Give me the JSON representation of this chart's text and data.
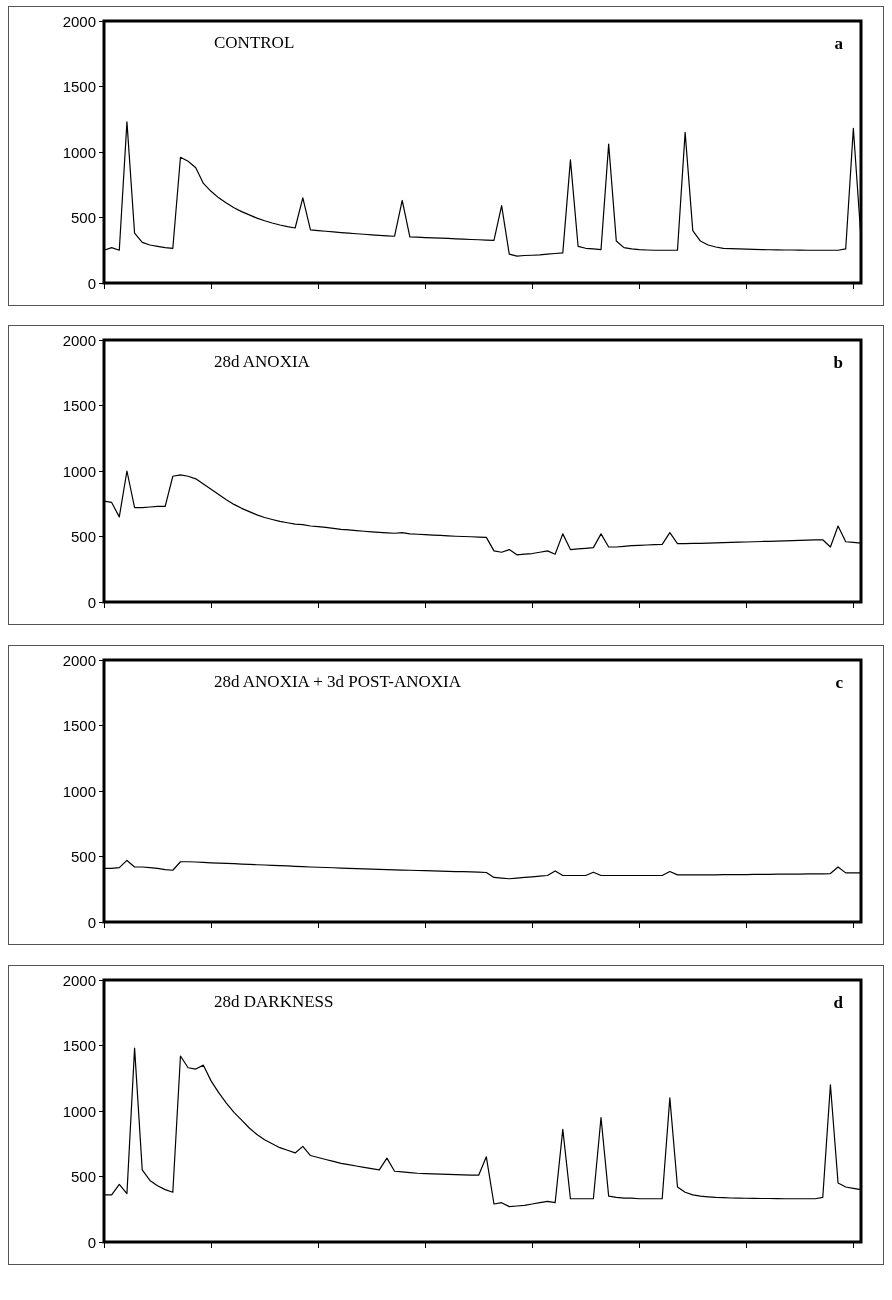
{
  "chart_data": [
    {
      "type": "line",
      "title": "CONTROL",
      "annotations": [
        "a"
      ],
      "color": "#000000",
      "marker": "none",
      "grid": false,
      "tick_labels": "y",
      "ylim": [
        0,
        2000
      ],
      "yticks": [
        0,
        500,
        1000,
        1500,
        2000
      ],
      "categories": [
        null,
        null,
        null,
        null,
        null,
        null,
        null,
        null,
        null,
        null,
        null,
        null,
        null,
        null,
        null,
        null,
        null,
        null,
        null,
        null,
        null,
        null,
        null,
        null,
        null,
        null,
        null,
        null,
        null,
        null,
        null,
        null,
        null,
        null,
        null,
        null,
        null,
        null,
        null,
        null,
        null,
        null,
        null,
        null,
        null,
        null,
        null,
        null,
        null,
        null,
        null,
        null,
        null,
        null,
        null,
        null,
        null,
        null,
        null,
        null,
        null,
        null,
        null,
        null,
        null,
        null,
        null,
        null,
        null,
        null,
        null,
        null,
        null,
        null,
        null,
        null,
        null,
        null,
        null,
        null,
        null,
        null,
        null,
        null,
        null,
        null,
        null,
        null,
        null,
        null,
        null,
        null,
        null,
        null,
        null,
        null,
        null,
        null,
        null,
        null
      ],
      "values": [
        250,
        270,
        250,
        1230,
        380,
        310,
        290,
        280,
        270,
        265,
        960,
        930,
        880,
        760,
        700,
        650,
        610,
        575,
        545,
        520,
        495,
        475,
        458,
        443,
        430,
        420,
        650,
        405,
        400,
        395,
        390,
        385,
        380,
        376,
        372,
        368,
        364,
        360,
        357,
        630,
        352,
        350,
        347,
        345,
        342,
        340,
        337,
        335,
        332,
        330,
        327,
        325,
        590,
        220,
        205,
        210,
        212,
        215,
        220,
        225,
        230,
        940,
        280,
        265,
        260,
        255,
        1060,
        320,
        270,
        260,
        255,
        252,
        250,
        250,
        250,
        250,
        1150,
        400,
        320,
        290,
        275,
        265,
        262,
        260,
        258,
        256,
        255,
        254,
        253,
        252,
        252,
        251,
        250,
        250,
        250,
        250,
        250,
        260,
        1180,
        340
      ]
    },
    {
      "type": "line",
      "title": "28d ANOXIA",
      "annotations": [
        "b"
      ],
      "color": "#000000",
      "marker": "none",
      "grid": false,
      "tick_labels": "y",
      "ylim": [
        0,
        2000
      ],
      "yticks": [
        0,
        500,
        1000,
        1500,
        2000
      ],
      "categories": [
        null,
        null,
        null,
        null,
        null,
        null,
        null,
        null,
        null,
        null,
        null,
        null,
        null,
        null,
        null,
        null,
        null,
        null,
        null,
        null,
        null,
        null,
        null,
        null,
        null,
        null,
        null,
        null,
        null,
        null,
        null,
        null,
        null,
        null,
        null,
        null,
        null,
        null,
        null,
        null,
        null,
        null,
        null,
        null,
        null,
        null,
        null,
        null,
        null,
        null,
        null,
        null,
        null,
        null,
        null,
        null,
        null,
        null,
        null,
        null,
        null,
        null,
        null,
        null,
        null,
        null,
        null,
        null,
        null,
        null,
        null,
        null,
        null,
        null,
        null,
        null,
        null,
        null,
        null,
        null,
        null,
        null,
        null,
        null,
        null,
        null,
        null,
        null,
        null,
        null,
        null,
        null,
        null,
        null,
        null,
        null,
        null,
        null,
        null,
        null
      ],
      "values": [
        770,
        760,
        650,
        1000,
        720,
        720,
        725,
        730,
        730,
        960,
        970,
        960,
        940,
        900,
        860,
        820,
        780,
        745,
        715,
        690,
        665,
        645,
        630,
        615,
        605,
        595,
        590,
        580,
        575,
        570,
        562,
        555,
        550,
        545,
        540,
        536,
        532,
        528,
        525,
        530,
        520,
        517,
        514,
        511,
        508,
        505,
        502,
        500,
        498,
        495,
        493,
        390,
        380,
        400,
        360,
        365,
        370,
        380,
        390,
        365,
        520,
        400,
        405,
        410,
        415,
        520,
        420,
        420,
        425,
        430,
        432,
        435,
        438,
        440,
        530,
        445,
        446,
        447,
        448,
        450,
        452,
        453,
        455,
        457,
        458,
        460,
        462,
        463,
        465,
        466,
        468,
        470,
        472,
        474,
        475,
        420,
        580,
        460,
        455,
        450
      ]
    },
    {
      "type": "line",
      "title": "28d ANOXIA + 3d POST-ANOXIA",
      "annotations": [
        "c"
      ],
      "color": "#000000",
      "marker": "none",
      "grid": false,
      "tick_labels": "y",
      "ylim": [
        0,
        2000
      ],
      "yticks": [
        0,
        500,
        1000,
        1500,
        2000
      ],
      "categories": [
        null,
        null,
        null,
        null,
        null,
        null,
        null,
        null,
        null,
        null,
        null,
        null,
        null,
        null,
        null,
        null,
        null,
        null,
        null,
        null,
        null,
        null,
        null,
        null,
        null,
        null,
        null,
        null,
        null,
        null,
        null,
        null,
        null,
        null,
        null,
        null,
        null,
        null,
        null,
        null,
        null,
        null,
        null,
        null,
        null,
        null,
        null,
        null,
        null,
        null,
        null,
        null,
        null,
        null,
        null,
        null,
        null,
        null,
        null,
        null,
        null,
        null,
        null,
        null,
        null,
        null,
        null,
        null,
        null,
        null,
        null,
        null,
        null,
        null,
        null,
        null,
        null,
        null,
        null,
        null,
        null,
        null,
        null,
        null,
        null,
        null,
        null,
        null,
        null,
        null,
        null,
        null,
        null,
        null,
        null,
        null,
        null,
        null,
        null,
        null
      ],
      "values": [
        410,
        410,
        415,
        470,
        420,
        420,
        415,
        410,
        400,
        395,
        460,
        460,
        458,
        455,
        452,
        450,
        447,
        445,
        442,
        440,
        437,
        435,
        432,
        430,
        428,
        425,
        423,
        420,
        418,
        416,
        414,
        412,
        410,
        408,
        406,
        404,
        402,
        400,
        398,
        396,
        395,
        393,
        392,
        390,
        388,
        386,
        385,
        384,
        382,
        380,
        378,
        340,
        335,
        330,
        335,
        340,
        345,
        350,
        355,
        390,
        355,
        355,
        355,
        355,
        380,
        355,
        355,
        355,
        355,
        355,
        355,
        355,
        355,
        355,
        385,
        360,
        360,
        360,
        360,
        360,
        360,
        362,
        362,
        362,
        362,
        364,
        364,
        364,
        365,
        365,
        366,
        366,
        367,
        368,
        368,
        370,
        420,
        375,
        375,
        375
      ]
    },
    {
      "type": "line",
      "title": "28d DARKNESS",
      "annotations": [
        "d"
      ],
      "color": "#000000",
      "marker": "none",
      "grid": false,
      "tick_labels": "y",
      "ylim": [
        0,
        2000
      ],
      "yticks": [
        0,
        500,
        1000,
        1500,
        2000
      ],
      "categories": [
        null,
        null,
        null,
        null,
        null,
        null,
        null,
        null,
        null,
        null,
        null,
        null,
        null,
        null,
        null,
        null,
        null,
        null,
        null,
        null,
        null,
        null,
        null,
        null,
        null,
        null,
        null,
        null,
        null,
        null,
        null,
        null,
        null,
        null,
        null,
        null,
        null,
        null,
        null,
        null,
        null,
        null,
        null,
        null,
        null,
        null,
        null,
        null,
        null,
        null,
        null,
        null,
        null,
        null,
        null,
        null,
        null,
        null,
        null,
        null,
        null,
        null,
        null,
        null,
        null,
        null,
        null,
        null,
        null,
        null,
        null,
        null,
        null,
        null,
        null,
        null,
        null,
        null,
        null,
        null,
        null,
        null,
        null,
        null,
        null,
        null,
        null,
        null,
        null,
        null,
        null,
        null,
        null,
        null,
        null,
        null,
        null,
        null,
        null,
        null
      ],
      "values": [
        360,
        360,
        440,
        370,
        1480,
        550,
        470,
        430,
        400,
        380,
        1420,
        1330,
        1320,
        1350,
        1230,
        1140,
        1060,
        990,
        930,
        870,
        820,
        780,
        750,
        720,
        700,
        680,
        730,
        660,
        645,
        630,
        615,
        600,
        590,
        580,
        570,
        560,
        550,
        640,
        540,
        535,
        530,
        525,
        522,
        520,
        518,
        516,
        514,
        512,
        510,
        510,
        650,
        290,
        300,
        270,
        275,
        280,
        290,
        300,
        310,
        300,
        860,
        330,
        330,
        330,
        330,
        950,
        350,
        340,
        335,
        335,
        330,
        330,
        330,
        330,
        1100,
        420,
        380,
        360,
        350,
        345,
        340,
        338,
        336,
        335,
        334,
        333,
        332,
        332,
        331,
        330,
        330,
        330,
        330,
        330,
        340,
        1200,
        450,
        420,
        410,
        400
      ]
    }
  ]
}
